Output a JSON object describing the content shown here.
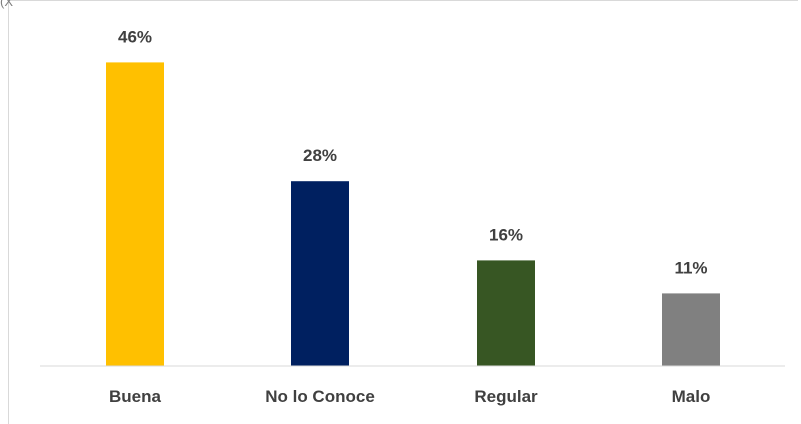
{
  "corner_text": "(X",
  "chart_data": {
    "type": "bar",
    "title": "",
    "xlabel": "",
    "ylabel": "",
    "categories": [
      "Buena",
      "No lo Conoce",
      "Regular",
      "Malo"
    ],
    "values": [
      46,
      28,
      16,
      11
    ],
    "value_labels": [
      "46%",
      "28%",
      "16%",
      "11%"
    ],
    "colors": [
      "#FFC000",
      "#002060",
      "#375623",
      "#808080"
    ],
    "ylim": [
      0,
      50
    ],
    "grid": false,
    "legend": "none"
  }
}
